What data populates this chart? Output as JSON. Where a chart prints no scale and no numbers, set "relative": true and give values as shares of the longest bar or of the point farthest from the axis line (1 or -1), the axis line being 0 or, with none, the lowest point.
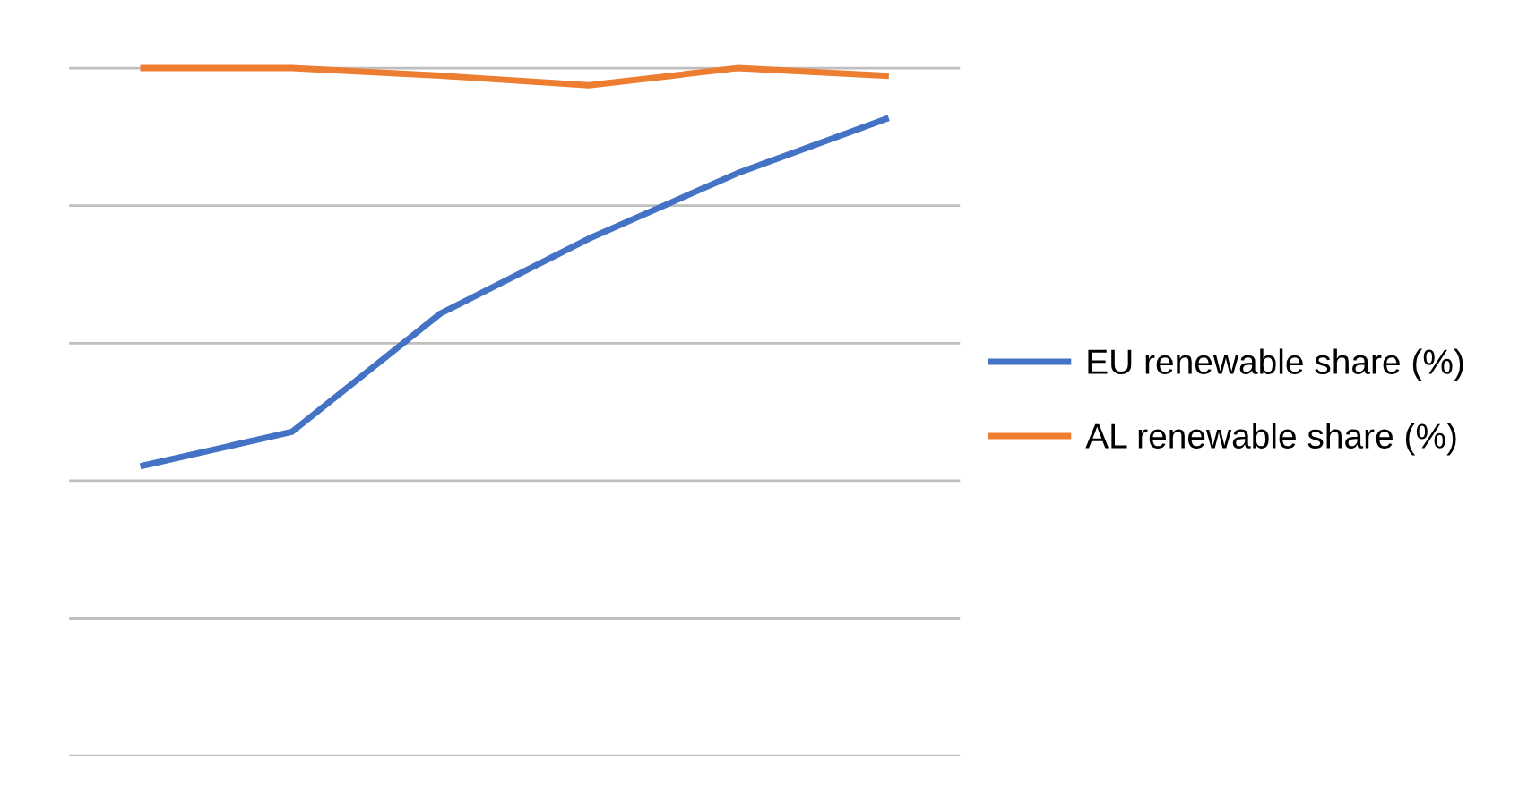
{
  "chart_data": {
    "type": "line",
    "relative": true,
    "categories": [
      null,
      null,
      null,
      null,
      null,
      null
    ],
    "series": [
      {
        "name": "EU renewable share (%)",
        "color": "#4472c4",
        "values": [
          0.422,
          0.471,
          0.643,
          0.752,
          0.847,
          0.926
        ]
      },
      {
        "name": "AL renewable share (%)",
        "color": "#ed7d31",
        "values": [
          1.0,
          1.0,
          0.989,
          0.975,
          1.0,
          0.989
        ]
      }
    ],
    "grid": "y",
    "legend": "right",
    "marker": "none",
    "line_style": "solid"
  }
}
